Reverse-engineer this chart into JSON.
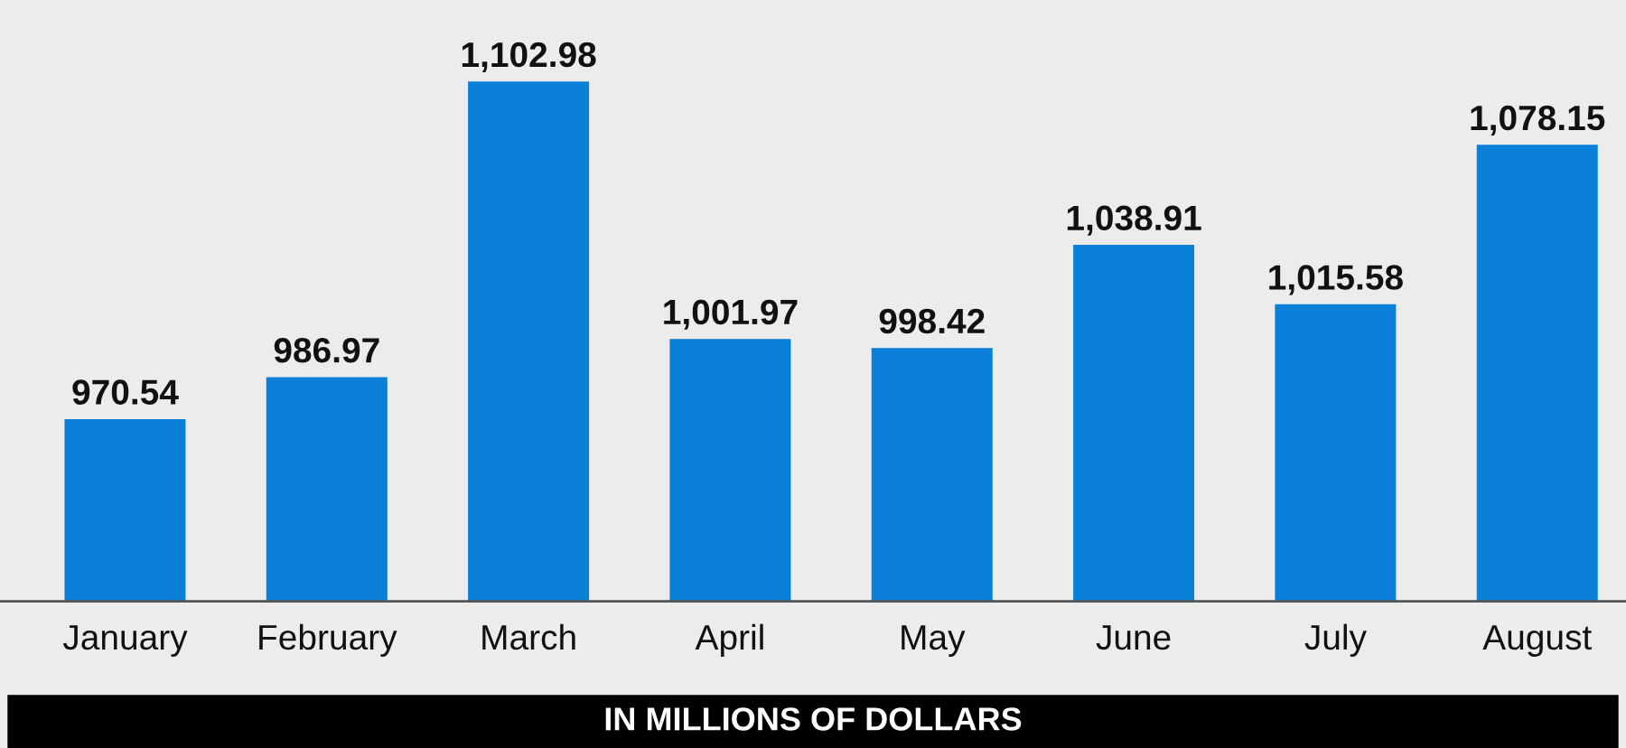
{
  "chart_data": {
    "type": "bar",
    "xlabel": "IN MILLIONS OF DOLLARS",
    "categories": [
      "January",
      "February",
      "March",
      "April",
      "May",
      "June",
      "July",
      "August"
    ],
    "values": [
      970.54,
      986.97,
      1102.98,
      1001.97,
      998.42,
      1038.91,
      1015.58,
      1078.15
    ],
    "value_labels": [
      "970.54",
      "986.97",
      "1,102.98",
      "1,001.97",
      "998.42",
      "1,038.91",
      "1,015.58",
      "1,078.15"
    ],
    "color": "#0a7fd8",
    "ylim": [
      899,
      1135
    ],
    "tick_labels": "x",
    "grid": false,
    "legend": false
  }
}
